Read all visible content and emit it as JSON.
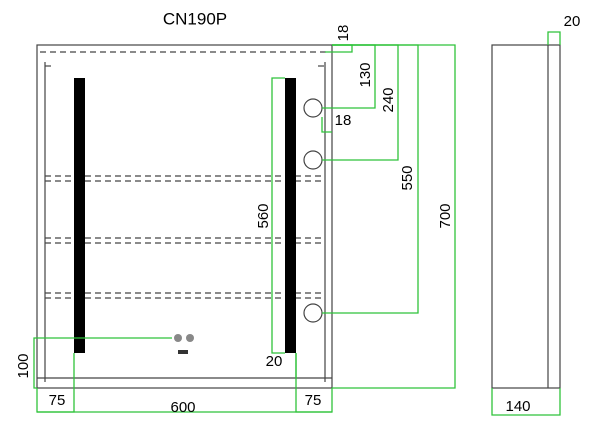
{
  "title": "CN190P",
  "dimensions": {
    "top_offset": "18",
    "first_socket": "130",
    "second_socket": "240",
    "socket_gap": "18",
    "third_socket": "550",
    "height": "700",
    "led_length": "560",
    "led_bottom": "20",
    "switch_height": "100",
    "left_margin": "75",
    "width": "600",
    "right_margin": "75",
    "door_depth": "20",
    "depth": "140"
  }
}
